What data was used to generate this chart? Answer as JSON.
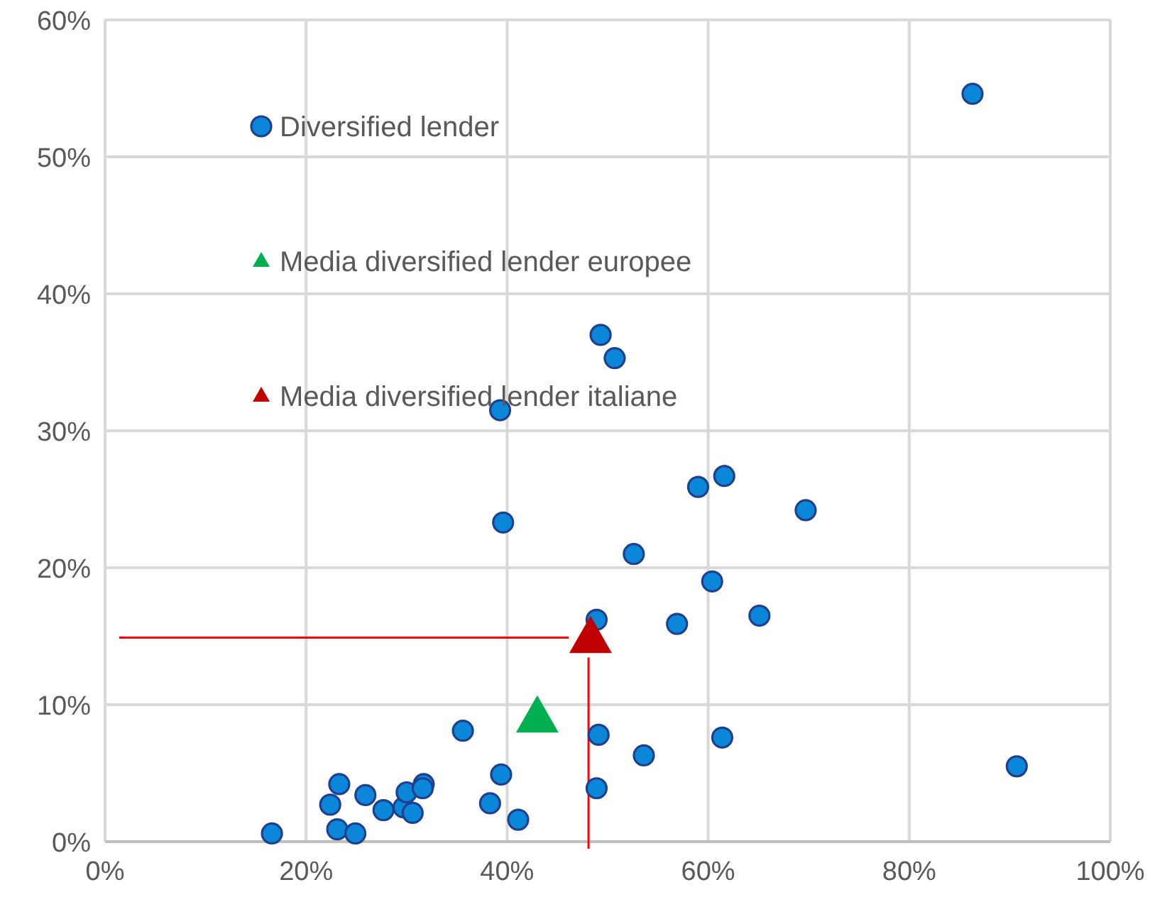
{
  "chart_data": {
    "type": "scatter",
    "xlim": [
      0,
      100
    ],
    "ylim": [
      0,
      60
    ],
    "xticks": [
      {
        "value": 0,
        "label": "0%"
      },
      {
        "value": 20,
        "label": "20%"
      },
      {
        "value": 40,
        "label": "40%"
      },
      {
        "value": 60,
        "label": "60%"
      },
      {
        "value": 80,
        "label": "80%"
      },
      {
        "value": 100,
        "label": "100%"
      }
    ],
    "yticks": [
      {
        "value": 0,
        "label": "0%"
      },
      {
        "value": 10,
        "label": "10%"
      },
      {
        "value": 20,
        "label": "20%"
      },
      {
        "value": 30,
        "label": "30%"
      },
      {
        "value": 40,
        "label": "40%"
      },
      {
        "value": 50,
        "label": "50%"
      },
      {
        "value": 60,
        "label": "60%"
      }
    ],
    "grid": true,
    "legend": "top left",
    "series": [
      {
        "name": "Diversified lender",
        "color": "#0a87d8",
        "marker": "circle",
        "x": [
          16.6,
          23.3,
          22.4,
          23.1,
          24.9,
          25.9,
          27.7,
          29.7,
          30.0,
          30.6,
          31.7,
          31.6,
          35.6,
          39.4,
          38.3,
          41.1,
          49.1,
          48.9,
          53.6,
          61.4,
          90.7,
          86.3,
          69.7,
          65.1,
          60.4,
          56.9,
          52.6,
          59.0,
          61.6,
          39.6,
          39.3,
          49.3,
          50.7,
          48.9
        ],
        "values": [
          0.6,
          4.2,
          2.7,
          0.9,
          0.6,
          3.4,
          2.3,
          2.5,
          3.6,
          2.1,
          4.2,
          3.9,
          8.1,
          4.9,
          2.8,
          1.6,
          7.8,
          3.9,
          6.3,
          7.6,
          5.5,
          54.6,
          24.2,
          16.5,
          19.0,
          15.9,
          21.0,
          25.9,
          26.7,
          23.3,
          31.5,
          37.0,
          35.3,
          16.2
        ]
      },
      {
        "name": "Media diversified lender europee",
        "color": "#00b050",
        "marker": "triangle",
        "x": [
          43
        ],
        "values": [
          9
        ]
      },
      {
        "name": "Media diversified lender italiane",
        "color": "#c00000",
        "marker": "triangle",
        "x": [
          48.3
        ],
        "values": [
          14.8
        ]
      }
    ],
    "ref_lines": [
      {
        "axis": "y",
        "value": 14.9,
        "color": "#ff0000"
      },
      {
        "axis": "x",
        "value": 48.1,
        "color": "#ff0000"
      }
    ]
  }
}
